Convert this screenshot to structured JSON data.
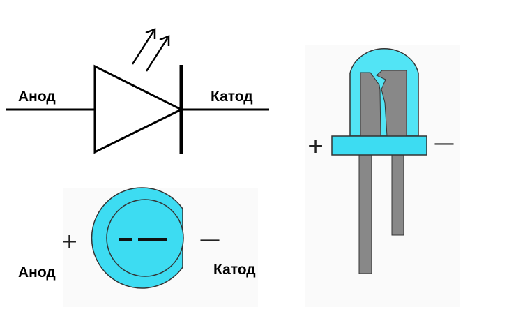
{
  "symbol": {
    "anode_label": "Анод",
    "cathode_label": "Катод"
  },
  "top_view": {
    "anode_label": "Анод",
    "cathode_label": "Катод",
    "plus_sign": "+",
    "minus_sign": "—"
  },
  "side_view": {
    "plus_sign": "+",
    "minus_sign": "—"
  },
  "colors": {
    "led_body": "#3ddcf2",
    "led_lens": "#52e4f5",
    "lead": "#888888",
    "line": "#000000",
    "background_panel": "#fafafa"
  }
}
